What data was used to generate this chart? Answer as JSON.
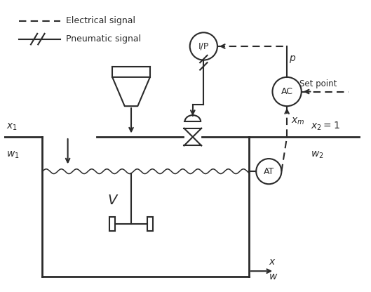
{
  "bg_color": "#ffffff",
  "line_color": "#2a2a2a",
  "legend_elec_label": "Electrical signal",
  "legend_pneu_label": "Pneumatic signal",
  "label_x1": "$x_1$",
  "label_w1": "$w_1$",
  "label_x2": "$x_2 = 1$",
  "label_w2": "$w_2$",
  "label_xm": "$x_m$",
  "label_x": "$x$",
  "label_w": "$w$",
  "label_p": "$p$",
  "label_V": "$V$",
  "label_setpoint": "Set point",
  "label_IP": "I/P",
  "label_AC": "AC",
  "label_AT": "AT",
  "figsize": [
    5.29,
    4.16
  ],
  "dpi": 100
}
